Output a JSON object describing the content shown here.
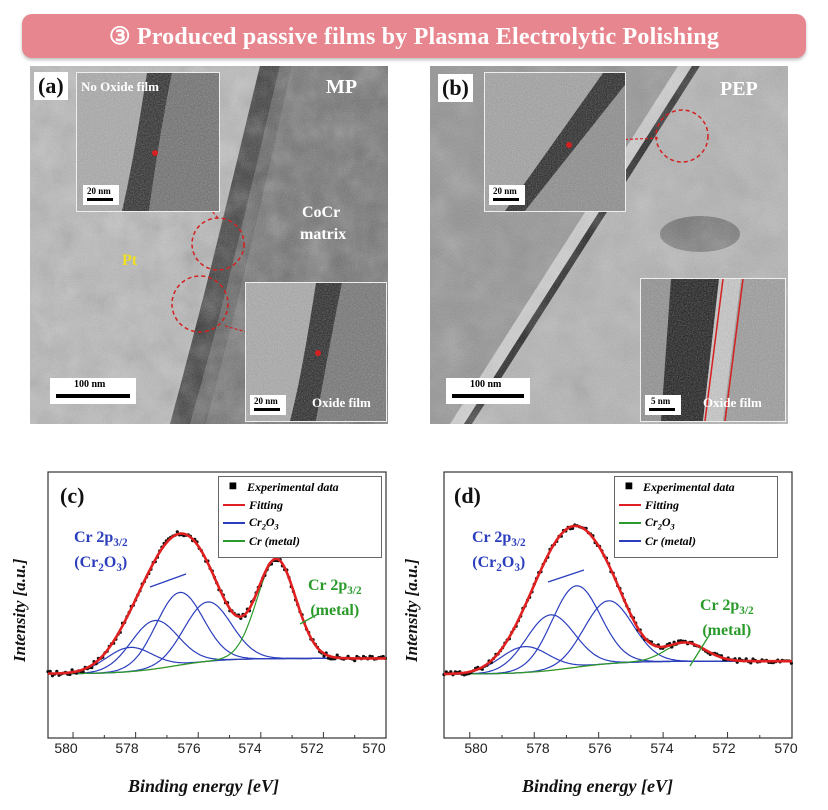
{
  "banner": {
    "title": "③ Produced passive films by Plasma Electrolytic Polishing"
  },
  "tem": {
    "a": {
      "label": "(a)",
      "condition": "MP",
      "inset1_caption": "No Oxide film",
      "inset1_scale": "20 nm",
      "inset2_caption": "Oxide film",
      "inset2_scale": "20 nm",
      "region_pt": "Pt",
      "region_matrix_line1": "CoCr",
      "region_matrix_line2": "matrix",
      "scale": "100 nm"
    },
    "b": {
      "label": "(b)",
      "condition": "PEP",
      "inset1_scale": "20 nm",
      "inset2_caption": "Oxide film",
      "inset2_scale": "5 nm",
      "scale": "100 nm"
    }
  },
  "xps": {
    "c": {
      "label": "(c)",
      "peak1_line1": "Cr 2p3/2",
      "peak1_line2": "(Cr2O3)",
      "peak2_line1": "Cr 2p3/2",
      "peak2_line2": "(metal)"
    },
    "d": {
      "label": "(d)",
      "peak1_line1": "Cr 2p3/2",
      "peak1_line2": "(Cr2O3)",
      "peak2_line1": "Cr 2p3/2",
      "peak2_line2": "(metal)"
    },
    "legend_c": [
      "Experimental data",
      "Fitting",
      "Cr2O3",
      "Cr (metal)"
    ],
    "legend_d": [
      "Experimental data",
      "Fitting",
      "Cr2O3",
      "Cr (metal)"
    ],
    "ylabel": "Intensity [a.u.]",
    "xlabel": "Binding energy [eV]",
    "xticks": [
      "580",
      "578",
      "576",
      "574",
      "572",
      "570"
    ]
  },
  "chart_data": [
    {
      "type": "line",
      "panel": "(c)",
      "xlabel": "Binding energy [eV]",
      "ylabel": "Intensity [a.u.]",
      "xlim": [
        580.8,
        570
      ],
      "x_reversed": true,
      "x": [
        580.8,
        580,
        579.5,
        579,
        578.5,
        578,
        577.5,
        577,
        576.5,
        576,
        575.5,
        575,
        574.5,
        574,
        573.5,
        573,
        572.5,
        572,
        571.5,
        571,
        570.5,
        570
      ],
      "series": [
        {
          "name": "Experimental data",
          "values": [
            0.02,
            0.04,
            0.06,
            0.09,
            0.14,
            0.22,
            0.33,
            0.45,
            0.5,
            0.46,
            0.37,
            0.28,
            0.25,
            0.34,
            0.42,
            0.28,
            0.09,
            0.04,
            0.02,
            0.01,
            0.01,
            0.01
          ]
        },
        {
          "name": "Fitting",
          "values": [
            0.02,
            0.04,
            0.06,
            0.09,
            0.14,
            0.22,
            0.33,
            0.45,
            0.5,
            0.46,
            0.37,
            0.28,
            0.25,
            0.34,
            0.42,
            0.28,
            0.09,
            0.04,
            0.02,
            0.01,
            0.01,
            0.01
          ]
        }
      ]
    },
    {
      "type": "line",
      "panel": "(d)",
      "xlabel": "Binding energy [eV]",
      "ylabel": "Intensity [a.u.]",
      "xlim": [
        580.8,
        570
      ],
      "x_reversed": true,
      "x": [
        580.8,
        580,
        579.5,
        579,
        578.5,
        578,
        577.5,
        577,
        576.5,
        576,
        575.5,
        575,
        574.5,
        574,
        573.5,
        573,
        572.5,
        572,
        571.5,
        571,
        570.5,
        570
      ],
      "series": [
        {
          "name": "Experimental data",
          "values": [
            0.02,
            0.04,
            0.07,
            0.11,
            0.18,
            0.3,
            0.45,
            0.58,
            0.6,
            0.52,
            0.38,
            0.22,
            0.12,
            0.08,
            0.07,
            0.05,
            0.02,
            0.01,
            0.01,
            0.0,
            0.0,
            0.0
          ]
        },
        {
          "name": "Fitting",
          "values": [
            0.02,
            0.04,
            0.07,
            0.11,
            0.18,
            0.3,
            0.45,
            0.58,
            0.6,
            0.52,
            0.38,
            0.22,
            0.12,
            0.08,
            0.07,
            0.05,
            0.02,
            0.01,
            0.01,
            0.0,
            0.0,
            0.0
          ]
        }
      ]
    }
  ]
}
